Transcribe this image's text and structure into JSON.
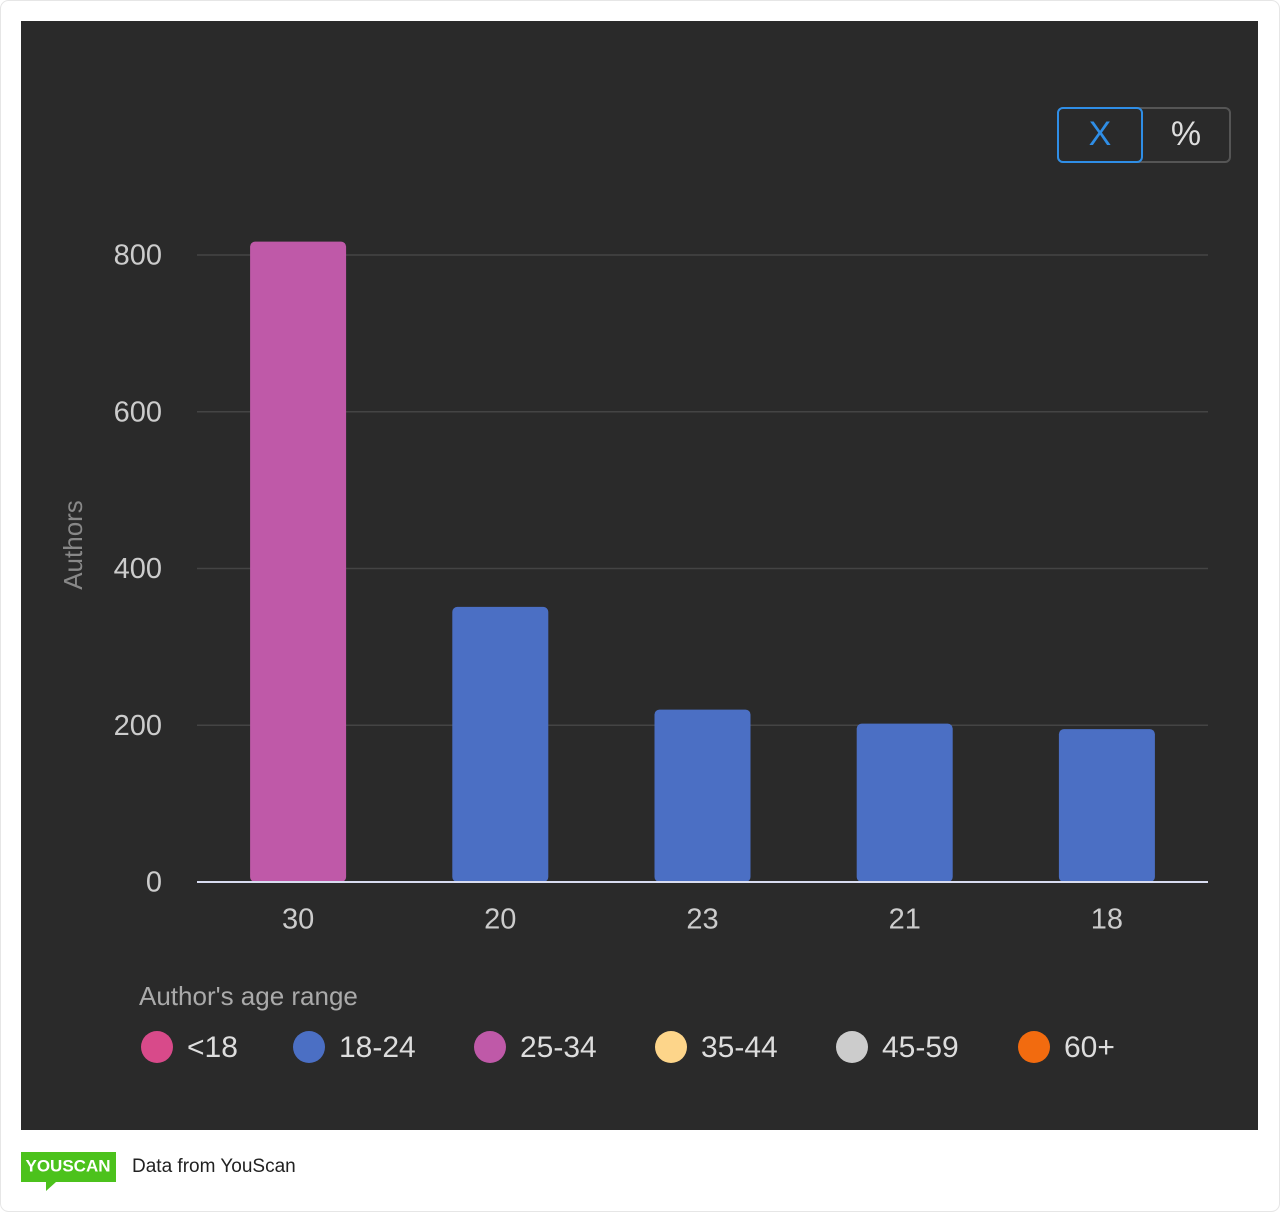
{
  "chart_data": {
    "type": "bar",
    "y_label": "Authors",
    "categories": [
      "30",
      "20",
      "23",
      "21",
      "18"
    ],
    "values": [
      817,
      351,
      220,
      202,
      195
    ],
    "colors": [
      "#bf59a8",
      "#4b6fc4",
      "#4b6fc4",
      "#4b6fc4",
      "#4b6fc4"
    ],
    "ylim": [
      0,
      800
    ],
    "yticks": [
      0,
      200,
      400,
      600,
      800
    ],
    "grid": true,
    "legend": {
      "title": "Author's age range",
      "items": [
        {
          "name": "<18",
          "color": "#d84a8a"
        },
        {
          "name": "18-24",
          "color": "#4b6fc4"
        },
        {
          "name": "25-34",
          "color": "#bf59a8"
        },
        {
          "name": "35-44",
          "color": "#fdd58a"
        },
        {
          "name": "45-59",
          "color": "#cccccc"
        },
        {
          "name": "60+",
          "color": "#f26b0f"
        }
      ]
    }
  },
  "toggle": [
    "X",
    "%"
  ],
  "footer": {
    "logo": "YOUSCAN",
    "text": "Data from YouScan"
  }
}
